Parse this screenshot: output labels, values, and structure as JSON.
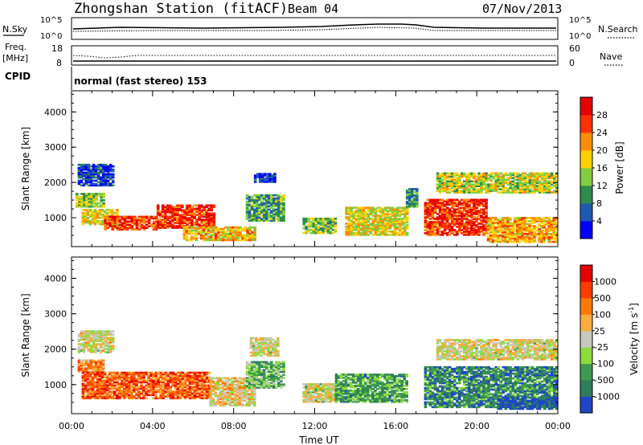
{
  "header": {
    "title": "Zhongshan Station (fitACF)",
    "beam": "Beam 04",
    "date": "07/Nov/2013"
  },
  "panels": {
    "nsky": {
      "label": "N.Sky",
      "ticks": [
        "10^5",
        "10^0"
      ],
      "right_label": "N.Search",
      "right_ticks": [
        "10^5",
        "10^0"
      ]
    },
    "freq": {
      "label_top": "Freq.",
      "label_unit": "[MHz]",
      "ticks": [
        "18",
        "8"
      ],
      "right_label": "Nave",
      "right_ticks": [
        "60",
        "0"
      ]
    },
    "cpid": {
      "label": "CPID",
      "program": "normal (fast stereo) 153"
    }
  },
  "chart_data": [
    {
      "type": "heatmap",
      "name": "power",
      "ylabel": "Slant Range [km]",
      "yticks": [
        1000,
        2000,
        3000,
        4000
      ],
      "ylim": [
        180,
        4600
      ],
      "xlim": [
        0,
        24
      ],
      "colorbar": {
        "label": "Power [dB]",
        "ticks": [
          "4",
          "8",
          "12",
          "16",
          "20",
          "24",
          "28"
        ],
        "colors": [
          "#0000ff",
          "#1e5ab4",
          "#2d8c4b",
          "#7fcf3f",
          "#ffd000",
          "#ff8c00",
          "#ff3000",
          "#e60000"
        ]
      },
      "regions": [
        {
          "t0": 0.2,
          "t1": 1.6,
          "r0": 1300,
          "r1": 1700,
          "v": 0.45
        },
        {
          "t0": 0.5,
          "t1": 2.2,
          "r0": 800,
          "r1": 1250,
          "v": 0.55
        },
        {
          "t0": 1.6,
          "t1": 4.2,
          "r0": 650,
          "r1": 1050,
          "v": 0.8
        },
        {
          "t0": 4.2,
          "t1": 7.0,
          "r0": 700,
          "r1": 1350,
          "v": 0.85
        },
        {
          "t0": 5.5,
          "t1": 9.0,
          "r0": 350,
          "r1": 750,
          "v": 0.6
        },
        {
          "t0": 8.6,
          "t1": 10.5,
          "r0": 900,
          "r1": 1650,
          "v": 0.35
        },
        {
          "t0": 11.4,
          "t1": 13.0,
          "r0": 550,
          "r1": 1000,
          "v": 0.4
        },
        {
          "t0": 13.5,
          "t1": 16.5,
          "r0": 500,
          "r1": 1300,
          "v": 0.55
        },
        {
          "t0": 16.5,
          "t1": 17.0,
          "r0": 1300,
          "r1": 1800,
          "v": 0.3
        },
        {
          "t0": 17.4,
          "t1": 20.5,
          "r0": 500,
          "r1": 1500,
          "v": 0.85
        },
        {
          "t0": 18.0,
          "t1": 23.9,
          "r0": 1700,
          "r1": 2250,
          "v": 0.5
        },
        {
          "t0": 20.5,
          "t1": 23.9,
          "r0": 300,
          "r1": 1000,
          "v": 0.65
        },
        {
          "t0": 0.3,
          "t1": 2.0,
          "r0": 1900,
          "r1": 2500,
          "v": 0.15
        },
        {
          "t0": 9.0,
          "t1": 10.0,
          "r0": 2000,
          "r1": 2250,
          "v": 0.12
        }
      ]
    },
    {
      "type": "heatmap",
      "name": "velocity",
      "ylabel": "Slant Range [km]",
      "xlabel": "Time UT",
      "xticks": [
        "00:00",
        "04:00",
        "08:00",
        "12:00",
        "16:00",
        "20:00",
        "00:00"
      ],
      "yticks": [
        1000,
        2000,
        3000,
        4000
      ],
      "ylim": [
        180,
        4600
      ],
      "xlim": [
        0,
        24
      ],
      "colorbar": {
        "label": "Velocity [m s^-1]",
        "ticks": [
          "1000",
          "500",
          "100",
          "25",
          "-25",
          "-100",
          "-500",
          "-1000"
        ],
        "colors": [
          "#1e46c8",
          "#2d7d5a",
          "#3c9b50",
          "#8cdc3c",
          "#c8c8be",
          "#ffaa3c",
          "#ff7800",
          "#ff3c00",
          "#e60000"
        ]
      },
      "regions": [
        {
          "t0": 0.3,
          "t1": 1.6,
          "r0": 1350,
          "r1": 1700,
          "v": 0.68
        },
        {
          "t0": 0.5,
          "t1": 6.8,
          "r0": 600,
          "r1": 1350,
          "v": 0.78
        },
        {
          "t0": 6.8,
          "t1": 9.0,
          "r0": 400,
          "r1": 1200,
          "v": 0.55
        },
        {
          "t0": 8.6,
          "t1": 10.5,
          "r0": 900,
          "r1": 1650,
          "v": 0.35
        },
        {
          "t0": 11.4,
          "t1": 13.0,
          "r0": 500,
          "r1": 1000,
          "v": 0.5
        },
        {
          "t0": 13.0,
          "t1": 16.5,
          "r0": 500,
          "r1": 1300,
          "v": 0.28
        },
        {
          "t0": 17.4,
          "t1": 23.9,
          "r0": 350,
          "r1": 1500,
          "v": 0.2
        },
        {
          "t0": 21.0,
          "t1": 23.9,
          "r0": 300,
          "r1": 650,
          "v": 0.05
        },
        {
          "t0": 18.0,
          "t1": 23.9,
          "r0": 1700,
          "r1": 2250,
          "v": 0.5
        },
        {
          "t0": 0.3,
          "t1": 2.0,
          "r0": 1900,
          "r1": 2500,
          "v": 0.5
        },
        {
          "t0": 8.8,
          "t1": 10.2,
          "r0": 1800,
          "r1": 2300,
          "v": 0.5
        }
      ]
    }
  ]
}
